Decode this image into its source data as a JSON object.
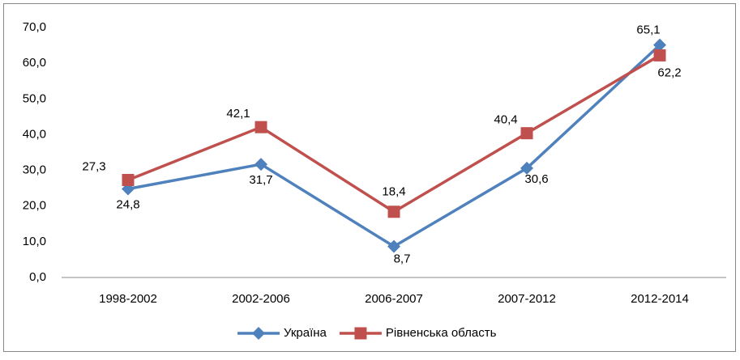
{
  "chart_data": {
    "type": "line",
    "categories": [
      "1998-2002",
      "2002-2006",
      "2006-2007",
      "2007-2012",
      "2012-2014"
    ],
    "series": [
      {
        "name": "Україна",
        "color": "#4f81bd",
        "marker": "diamond",
        "values": [
          24.8,
          31.7,
          8.7,
          30.6,
          65.1
        ],
        "value_labels": [
          "24,8",
          "31,7",
          "8,7",
          "30,6",
          "65,1"
        ]
      },
      {
        "name": "Рівненська область",
        "color": "#c0504d",
        "marker": "square",
        "values": [
          27.3,
          42.1,
          18.4,
          40.4,
          62.2
        ],
        "value_labels": [
          "27,3",
          "42,1",
          "18,4",
          "40,4",
          "62,2"
        ]
      }
    ],
    "ylim": [
      0,
      70
    ],
    "yticks": [
      {
        "value": 0,
        "label": "0,0"
      },
      {
        "value": 10,
        "label": "10,0"
      },
      {
        "value": 20,
        "label": "20,0"
      },
      {
        "value": 30,
        "label": "30,0"
      },
      {
        "value": 40,
        "label": "40,0"
      },
      {
        "value": 50,
        "label": "50,0"
      },
      {
        "value": 60,
        "label": "60,0"
      },
      {
        "value": 70,
        "label": "70,0"
      }
    ],
    "legend": "bottom",
    "grid": false
  }
}
